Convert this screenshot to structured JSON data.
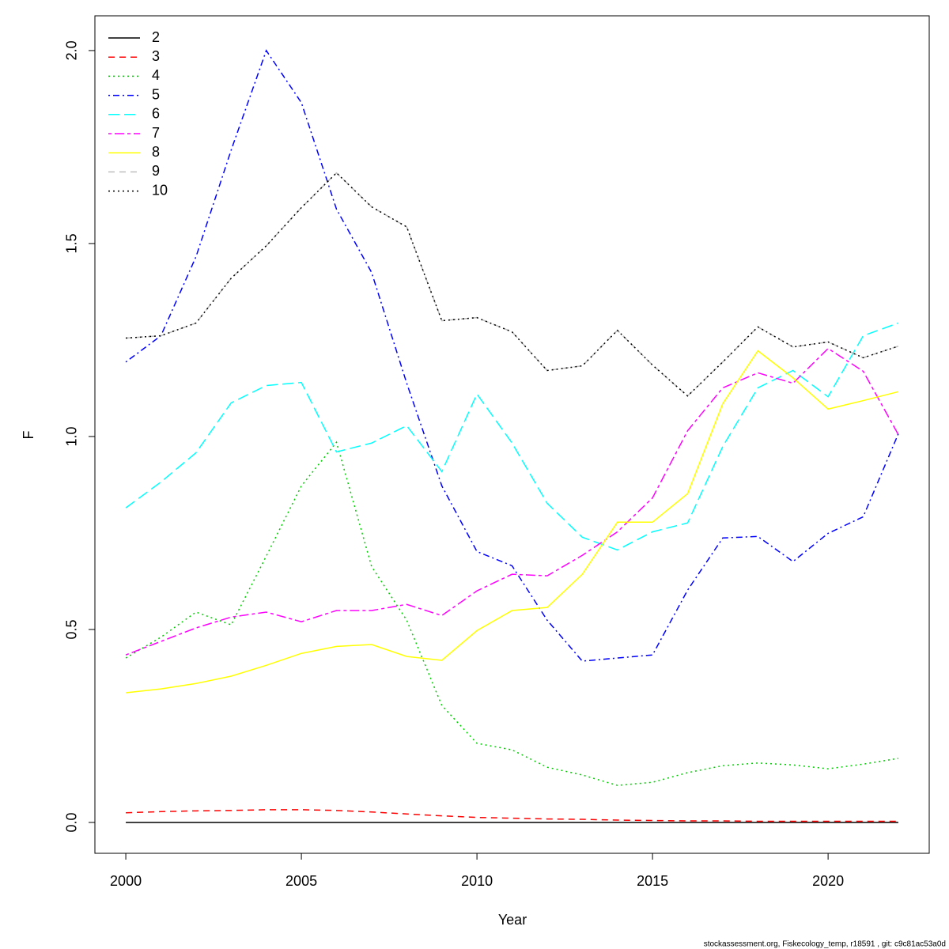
{
  "chart_data": {
    "type": "line",
    "x_label": "Year",
    "y_label": "F",
    "footer": "stockassessment.org, Fiskecology_temp, r18591 , git: c9c81ac53a0d",
    "legend": "topleft",
    "xlim": [
      1999.12,
      2022.88
    ],
    "ylim": [
      -0.08,
      2.09
    ],
    "xticks": [
      2000,
      2005,
      2010,
      2015,
      2020
    ],
    "yticks": [
      {
        "value": 0,
        "label": "0.0"
      },
      0.5,
      {
        "value": 1,
        "label": "1.0"
      },
      1.5,
      {
        "value": 2,
        "label": "2.0"
      }
    ],
    "x": [
      2000,
      2001,
      2002,
      2003,
      2004,
      2005,
      2006,
      2007,
      2008,
      2009,
      2010,
      2011,
      2012,
      2013,
      2014,
      2015,
      2016,
      2017,
      2018,
      2019,
      2020,
      2021,
      2022
    ],
    "series": [
      {
        "name": "2",
        "color": "#000000",
        "linestyle": "solid",
        "values": [
          0,
          0,
          0,
          0,
          0,
          0,
          0,
          0,
          0,
          0,
          0,
          0,
          0,
          0,
          0,
          0,
          0,
          0,
          0,
          0,
          0,
          0,
          0
        ]
      },
      {
        "name": "3",
        "color": "#ff0000",
        "linestyle": "dashed",
        "values": [
          0.025,
          0.028,
          0.03,
          0.031,
          0.033,
          0.033,
          0.031,
          0.027,
          0.022,
          0.017,
          0.013,
          0.011,
          0.009,
          0.008,
          0.006,
          0.005,
          0.004,
          0.004,
          0.003,
          0.003,
          0.003,
          0.003,
          0.003
        ]
      },
      {
        "name": "4",
        "color": "#00cd00",
        "linestyle": "dotted",
        "values": [
          0.426,
          0.48,
          0.545,
          0.512,
          0.69,
          0.872,
          0.985,
          0.663,
          0.524,
          0.303,
          0.205,
          0.188,
          0.143,
          0.123,
          0.096,
          0.104,
          0.129,
          0.147,
          0.154,
          0.149,
          0.139,
          0.151,
          0.166
        ]
      },
      {
        "name": "5",
        "color": "#0000ff",
        "linestyle": "dotdash",
        "values": [
          1.193,
          1.261,
          1.466,
          1.742,
          2.0,
          1.865,
          1.589,
          1.425,
          1.138,
          0.872,
          0.702,
          0.665,
          0.524,
          0.418,
          0.426,
          0.434,
          0.602,
          0.737,
          0.741,
          0.676,
          0.749,
          0.792,
          1.007
        ]
      },
      {
        "name": "6",
        "color": "#00ffff",
        "linestyle": "longdash",
        "values": [
          0.815,
          0.882,
          0.958,
          1.087,
          1.132,
          1.14,
          0.96,
          0.983,
          1.028,
          0.909,
          1.11,
          0.983,
          0.827,
          0.739,
          0.706,
          0.753,
          0.776,
          0.974,
          1.126,
          1.171,
          1.103,
          1.261,
          1.294
        ]
      },
      {
        "name": "7",
        "color": "#ff00ff",
        "linestyle": "twodash",
        "values": [
          0.434,
          0.469,
          0.504,
          0.532,
          0.545,
          0.52,
          0.549,
          0.549,
          0.565,
          0.536,
          0.6,
          0.643,
          0.639,
          0.692,
          0.753,
          0.841,
          1.015,
          1.126,
          1.165,
          1.138,
          1.228,
          1.169,
          1.005
        ]
      },
      {
        "name": "8",
        "color": "#ffff00",
        "linestyle": "solid",
        "values": [
          0.336,
          0.346,
          0.36,
          0.379,
          0.407,
          0.438,
          0.456,
          0.461,
          0.43,
          0.42,
          0.497,
          0.549,
          0.557,
          0.643,
          0.778,
          0.778,
          0.852,
          1.085,
          1.222,
          1.152,
          1.071,
          1.093,
          1.116
        ]
      },
      {
        "name": "9",
        "color": "#bebebe",
        "linestyle": "dashed",
        "values": [
          1.255,
          1.261,
          1.294,
          1.41,
          1.494,
          1.593,
          1.683,
          1.595,
          1.543,
          1.3,
          1.308,
          1.271,
          1.171,
          1.183,
          1.275,
          1.185,
          1.105,
          1.193,
          1.284,
          1.232,
          1.245,
          1.204,
          1.234
        ]
      },
      {
        "name": "10",
        "color": "#000000",
        "linestyle": "dotted",
        "values": [
          1.255,
          1.261,
          1.294,
          1.41,
          1.494,
          1.593,
          1.683,
          1.595,
          1.543,
          1.3,
          1.308,
          1.271,
          1.171,
          1.183,
          1.275,
          1.185,
          1.105,
          1.193,
          1.284,
          1.232,
          1.245,
          1.204,
          1.234
        ]
      }
    ]
  }
}
